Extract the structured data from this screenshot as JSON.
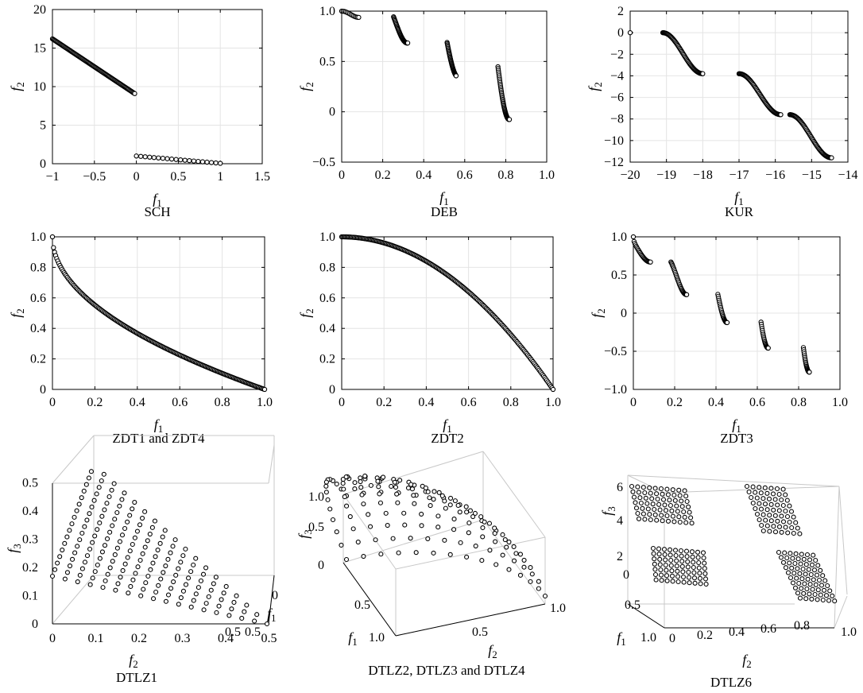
{
  "chart_data": [
    {
      "id": "sch",
      "type": "scatter",
      "caption": "SCH",
      "xlabel": "f1",
      "ylabel": "f2",
      "xlim": [
        -1,
        1.5
      ],
      "ylim": [
        0,
        20
      ],
      "xticks": [
        -1,
        -0.5,
        0,
        0.5,
        1,
        1.5
      ],
      "xticklabels": [
        "−1",
        "−0.5",
        "0",
        "0.5",
        "1",
        "1.5"
      ],
      "yticks": [
        0,
        5,
        10,
        15,
        20
      ],
      "yticklabels": [
        "0",
        "5",
        "10",
        "15",
        "20"
      ],
      "grid": true,
      "segments": [
        {
          "kind": "linear",
          "x0": -1.0,
          "y0": 16.2,
          "x1": -0.02,
          "y1": 9.1,
          "n": 100
        },
        {
          "kind": "linear",
          "x0": 0.0,
          "y0": 1.0,
          "x1": 1.0,
          "y1": 0.05,
          "n": 20
        }
      ]
    },
    {
      "id": "deb",
      "type": "scatter",
      "caption": "DEB",
      "xlabel": "f1",
      "ylabel": "f2",
      "xlim": [
        0,
        1.0
      ],
      "ylim": [
        -0.5,
        1.0
      ],
      "xticks": [
        0,
        0.2,
        0.4,
        0.6,
        0.8,
        1.0
      ],
      "xticklabels": [
        "0",
        "0.2",
        "0.4",
        "0.6",
        "0.8",
        "1.0"
      ],
      "yticks": [
        -0.5,
        0,
        0.5,
        1.0
      ],
      "yticklabels": [
        "−0.5",
        "0",
        "0.5",
        "1.0"
      ],
      "grid": true,
      "segments": [
        {
          "kind": "deb",
          "x0": 0.0,
          "x1": 0.083,
          "n": 14
        },
        {
          "kind": "deb",
          "x0": 0.253,
          "x1": 0.322,
          "n": 40
        },
        {
          "kind": "deb",
          "x0": 0.514,
          "x1": 0.558,
          "n": 40
        },
        {
          "kind": "deb",
          "x0": 0.762,
          "x1": 0.818,
          "n": 50
        }
      ]
    },
    {
      "id": "kur",
      "type": "scatter",
      "caption": "KUR",
      "xlabel": "f1",
      "ylabel": "f2",
      "xlim": [
        -20,
        -14
      ],
      "ylim": [
        -12,
        2
      ],
      "xticks": [
        -20,
        -19,
        -18,
        -17,
        -16,
        -15,
        -14
      ],
      "xticklabels": [
        "−20",
        "−19",
        "−18",
        "−17",
        "−16",
        "−15",
        "−14"
      ],
      "yticks": [
        -12,
        -10,
        -8,
        -6,
        -4,
        -2,
        0,
        2
      ],
      "yticklabels": [
        "−12",
        "−10",
        "−8",
        "−6",
        "−4",
        "−2",
        "0",
        "2"
      ],
      "grid": true,
      "isolated_points": [
        [
          -20.0,
          0.0
        ]
      ],
      "segments": [
        {
          "kind": "sig",
          "x0": -19.1,
          "y0": 0.0,
          "x1": -18.0,
          "y1": -3.8,
          "n": 60
        },
        {
          "kind": "sig",
          "x0": -17.0,
          "y0": -3.8,
          "x1": -15.85,
          "y1": -7.6,
          "n": 60
        },
        {
          "kind": "sig",
          "x0": -15.6,
          "y0": -7.6,
          "x1": -14.45,
          "y1": -11.6,
          "n": 60
        }
      ]
    },
    {
      "id": "zdt1",
      "type": "scatter",
      "caption": "ZDT1 and ZDT4",
      "xlabel": "f1",
      "ylabel": "f2",
      "xlim": [
        0,
        1.0
      ],
      "ylim": [
        0,
        1.0
      ],
      "xticks": [
        0,
        0.2,
        0.4,
        0.6,
        0.8,
        1.0
      ],
      "xticklabels": [
        "0",
        "0.2",
        "0.4",
        "0.6",
        "0.8",
        "1.0"
      ],
      "yticks": [
        0,
        0.2,
        0.4,
        0.6,
        0.8,
        1.0
      ],
      "yticklabels": [
        "0",
        "0.2",
        "0.4",
        "0.6",
        "0.8",
        "1.0"
      ],
      "grid": true,
      "segments": [
        {
          "kind": "zdt1",
          "x0": 0.0,
          "x1": 1.0,
          "n": 200
        }
      ]
    },
    {
      "id": "zdt2",
      "type": "scatter",
      "caption": "ZDT2",
      "xlabel": "f1",
      "ylabel": "f2",
      "xlim": [
        0,
        1.0
      ],
      "ylim": [
        0,
        1.0
      ],
      "xticks": [
        0,
        0.2,
        0.4,
        0.6,
        0.8,
        1.0
      ],
      "xticklabels": [
        "0",
        "0.2",
        "0.4",
        "0.6",
        "0.8",
        "1.0"
      ],
      "yticks": [
        0,
        0.2,
        0.4,
        0.6,
        0.8,
        1.0
      ],
      "yticklabels": [
        "0",
        "0.2",
        "0.4",
        "0.6",
        "0.8",
        "1.0"
      ],
      "grid": true,
      "segments": [
        {
          "kind": "zdt2",
          "x0": 0.0,
          "x1": 1.0,
          "n": 200
        }
      ]
    },
    {
      "id": "zdt3",
      "type": "scatter",
      "caption": "ZDT3",
      "xlabel": "f1",
      "ylabel": "f2",
      "xlim": [
        0,
        1.0
      ],
      "ylim": [
        -1.0,
        1.0
      ],
      "xticks": [
        0,
        0.2,
        0.4,
        0.6,
        0.8,
        1.0
      ],
      "xticklabels": [
        "0",
        "0.2",
        "0.4",
        "0.6",
        "0.8",
        "1.0"
      ],
      "yticks": [
        -1.0,
        -0.5,
        0,
        0.5,
        1.0
      ],
      "yticklabels": [
        "−1.0",
        "−0.5",
        "0",
        "0.5",
        "1.0"
      ],
      "grid": true,
      "segments": [
        {
          "kind": "zdt3",
          "x0": 0.0,
          "x1": 0.083,
          "n": 24
        },
        {
          "kind": "zdt3",
          "x0": 0.182,
          "x1": 0.258,
          "n": 30
        },
        {
          "kind": "zdt3",
          "x0": 0.409,
          "x1": 0.454,
          "n": 24
        },
        {
          "kind": "zdt3",
          "x0": 0.618,
          "x1": 0.653,
          "n": 22
        },
        {
          "kind": "zdt3",
          "x0": 0.823,
          "x1": 0.852,
          "n": 22
        }
      ]
    },
    {
      "id": "dtlz1",
      "type": "scatter3d",
      "caption": "DTLZ1",
      "xlabel": "f1",
      "ylabel": "f2",
      "zlabel": "f3",
      "front": "dtlz1",
      "divisions": 17,
      "f3ticklabels": [
        "0",
        "0.1",
        "0.2",
        "0.3",
        "0.4",
        "0.5"
      ],
      "f2ticklabels": [
        "0",
        "0.1",
        "0.2",
        "0.3",
        "0.4",
        "0.5"
      ],
      "f1ticklabels": [
        "0",
        "0.5",
        "0.5"
      ]
    },
    {
      "id": "dtlz2",
      "type": "scatter3d",
      "caption": "DTLZ2, DTLZ3 and DTLZ4",
      "xlabel": "f1",
      "ylabel": "f2",
      "zlabel": "f3",
      "front": "sphere",
      "divisions": 14,
      "f3ticklabels": [
        "0",
        "0.5",
        "1.0"
      ],
      "f2ticklabels": [
        "0",
        "0.5",
        "1.0"
      ],
      "f1ticklabels": [
        "0.5",
        "1.0"
      ]
    },
    {
      "id": "dtlz6",
      "type": "scatter3d",
      "caption": "DTLZ6",
      "xlabel": "f1",
      "ylabel": "f2",
      "zlabel": "f3",
      "front": "four-patch grid",
      "f3ticklabels": [
        "2",
        "4",
        "6"
      ],
      "f2ticklabels": [
        "0",
        "0.2",
        "0.4",
        "0.6",
        "0.8",
        "1.0"
      ],
      "f1ticklabels": [
        "0",
        "0.5",
        "1.0"
      ]
    }
  ]
}
